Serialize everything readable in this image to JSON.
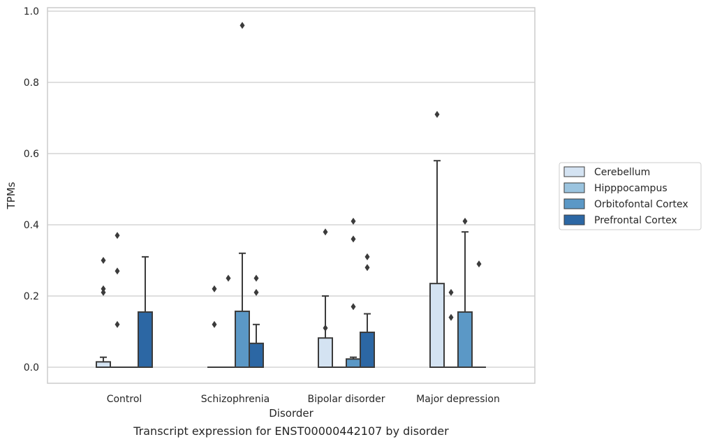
{
  "chart_data": {
    "type": "box",
    "title": "",
    "caption": "Transcript expression for ENST00000442107 by disorder",
    "xlabel": "Disorder",
    "ylabel": "TPMs",
    "ylim": [
      -0.045,
      1.01
    ],
    "yticks": [
      0.0,
      0.2,
      0.4,
      0.6,
      0.8,
      1.0
    ],
    "ytick_labels": [
      "0.0",
      "0.2",
      "0.4",
      "0.6",
      "0.8",
      "1.0"
    ],
    "categories": [
      "Control",
      "Schizophrenia",
      "Bipolar disorder",
      "Major depression"
    ],
    "grid": "horizontal",
    "legend_position": "right",
    "series": [
      {
        "name": "Cerebellum",
        "color": "#d4e3f2",
        "boxes": [
          {
            "q1": 0.0,
            "median": 0.0,
            "q3": 0.015,
            "whisker_low": 0.0,
            "whisker_high": 0.028,
            "outliers": [
              0.3,
              0.22,
              0.21
            ]
          },
          {
            "q1": 0.0,
            "median": 0.0,
            "q3": 0.0,
            "whisker_low": 0.0,
            "whisker_high": 0.0,
            "outliers": [
              0.22,
              0.12
            ]
          },
          {
            "q1": 0.0,
            "median": 0.0,
            "q3": 0.082,
            "whisker_low": 0.0,
            "whisker_high": 0.2,
            "outliers": [
              0.38,
              0.11
            ]
          },
          {
            "q1": 0.0,
            "median": 0.0,
            "q3": 0.235,
            "whisker_low": 0.0,
            "whisker_high": 0.58,
            "outliers": [
              0.71
            ]
          }
        ]
      },
      {
        "name": "Hipppocampus",
        "color": "#9bc4df",
        "boxes": [
          {
            "q1": 0.0,
            "median": 0.0,
            "q3": 0.0,
            "whisker_low": 0.0,
            "whisker_high": 0.0,
            "outliers": [
              0.37,
              0.27,
              0.12
            ]
          },
          {
            "q1": 0.0,
            "median": 0.0,
            "q3": 0.0,
            "whisker_low": 0.0,
            "whisker_high": 0.0,
            "outliers": [
              0.25
            ]
          },
          {
            "q1": 0.0,
            "median": 0.0,
            "q3": 0.0,
            "whisker_low": 0.0,
            "whisker_high": 0.0,
            "outliers": []
          },
          {
            "q1": 0.0,
            "median": 0.0,
            "q3": 0.0,
            "whisker_low": 0.0,
            "whisker_high": 0.0,
            "outliers": [
              0.21,
              0.14
            ]
          }
        ]
      },
      {
        "name": "Orbitofontal Cortex",
        "color": "#5b98c6",
        "boxes": [
          {
            "q1": 0.0,
            "median": 0.0,
            "q3": 0.0,
            "whisker_low": 0.0,
            "whisker_high": 0.0,
            "outliers": []
          },
          {
            "q1": 0.0,
            "median": 0.0,
            "q3": 0.157,
            "whisker_low": 0.0,
            "whisker_high": 0.32,
            "outliers": [
              0.96
            ]
          },
          {
            "q1": 0.0,
            "median": 0.0,
            "q3": 0.023,
            "whisker_low": 0.0,
            "whisker_high": 0.028,
            "outliers": [
              0.41,
              0.36,
              0.17
            ]
          },
          {
            "q1": 0.0,
            "median": 0.0,
            "q3": 0.155,
            "whisker_low": 0.0,
            "whisker_high": 0.38,
            "outliers": [
              0.41
            ]
          }
        ]
      },
      {
        "name": "Prefrontal Cortex",
        "color": "#2c67a4",
        "boxes": [
          {
            "q1": 0.0,
            "median": 0.0,
            "q3": 0.155,
            "whisker_low": 0.0,
            "whisker_high": 0.31,
            "outliers": []
          },
          {
            "q1": 0.0,
            "median": 0.0,
            "q3": 0.067,
            "whisker_low": 0.0,
            "whisker_high": 0.12,
            "outliers": [
              0.25,
              0.21
            ]
          },
          {
            "q1": 0.0,
            "median": 0.0,
            "q3": 0.098,
            "whisker_low": 0.0,
            "whisker_high": 0.15,
            "outliers": [
              0.31,
              0.28
            ]
          },
          {
            "q1": 0.0,
            "median": 0.0,
            "q3": 0.0,
            "whisker_low": 0.0,
            "whisker_high": 0.0,
            "outliers": [
              0.29
            ]
          }
        ]
      }
    ]
  }
}
